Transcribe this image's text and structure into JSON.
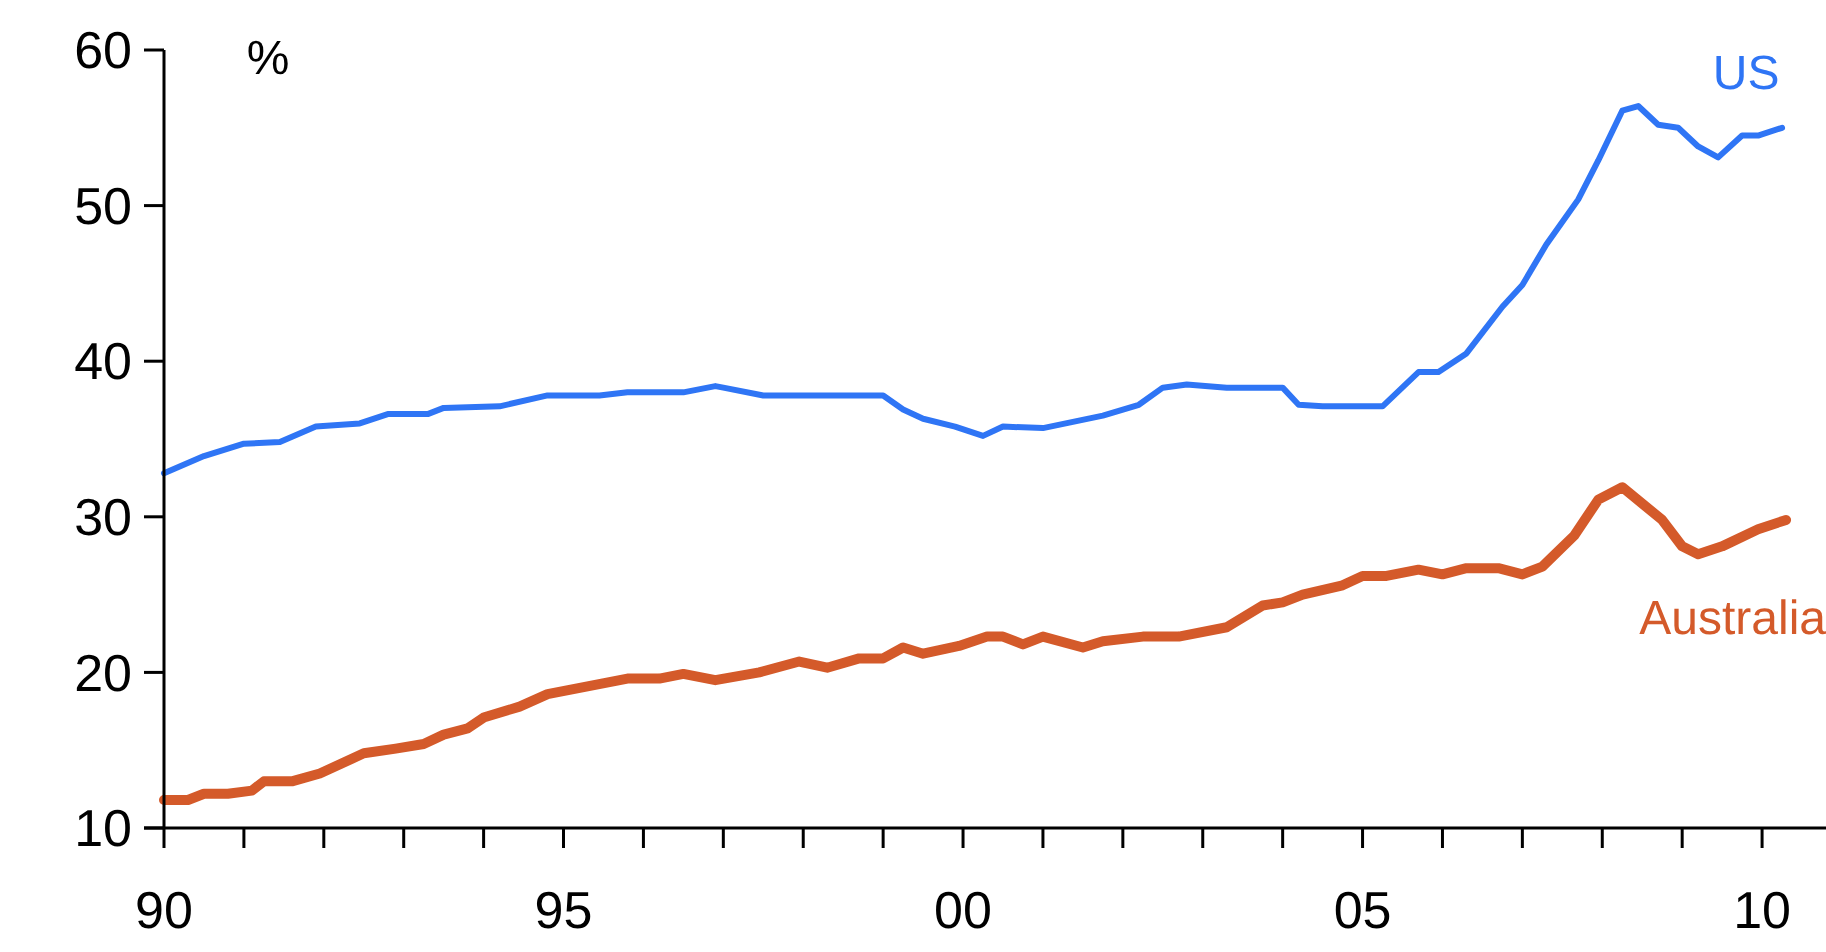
{
  "chart_data": {
    "type": "line",
    "ylabel": "%",
    "xlim": [
      1990,
      2010.8
    ],
    "ylim": [
      10,
      60
    ],
    "yticks": [
      10,
      20,
      30,
      40,
      50,
      60
    ],
    "xticks": [
      {
        "value": 1990,
        "label": "90"
      },
      {
        "value": 1991,
        "label": null
      },
      {
        "value": 1992,
        "label": null
      },
      {
        "value": 1993,
        "label": null
      },
      {
        "value": 1994,
        "label": null
      },
      {
        "value": 1995,
        "label": "95"
      },
      {
        "value": 1996,
        "label": null
      },
      {
        "value": 1997,
        "label": null
      },
      {
        "value": 1998,
        "label": null
      },
      {
        "value": 1999,
        "label": null
      },
      {
        "value": 2000,
        "label": "00"
      },
      {
        "value": 2001,
        "label": null
      },
      {
        "value": 2002,
        "label": null
      },
      {
        "value": 2003,
        "label": null
      },
      {
        "value": 2004,
        "label": null
      },
      {
        "value": 2005,
        "label": "05"
      },
      {
        "value": 2006,
        "label": null
      },
      {
        "value": 2007,
        "label": null
      },
      {
        "value": 2008,
        "label": null
      },
      {
        "value": 2009,
        "label": null
      },
      {
        "value": 2010,
        "label": "10"
      }
    ],
    "grid": false,
    "marker": "none",
    "line_style": "solid",
    "series": [
      {
        "name": "US",
        "color": "#2f75f5",
        "x": [
          1990,
          1990.5,
          1991,
          1991.45,
          1991.9,
          1992.45,
          1992.8,
          1993.3,
          1993.5,
          1994.2,
          1994.8,
          1995.45,
          1995.8,
          1996.5,
          1996.9,
          1997,
          1997.5,
          1999,
          1999.25,
          1999.5,
          1999.9,
          2000.25,
          2000.5,
          2001,
          2001.75,
          2002.2,
          2002.5,
          2002.8,
          2003.3,
          2004,
          2004.2,
          2004.5,
          2005.25,
          2005.7,
          2005.95,
          2006.3,
          2006.75,
          2007,
          2007.3,
          2007.7,
          2007.95,
          2008.25,
          2008.45,
          2008.7,
          2008.95,
          2009.2,
          2009.45,
          2009.75,
          2009.95,
          2010.25
        ],
        "values": [
          32.8,
          33.9,
          34.7,
          34.8,
          35.8,
          36,
          36.6,
          36.6,
          37,
          37.1,
          37.8,
          37.8,
          38,
          38,
          38.4,
          38.3,
          37.8,
          37.8,
          36.9,
          36.3,
          35.8,
          35.2,
          35.8,
          35.7,
          36.5,
          37.2,
          38.3,
          38.5,
          38.3,
          38.3,
          37.2,
          37.1,
          37.1,
          39.3,
          39.3,
          40.5,
          43.5,
          44.9,
          47.5,
          50.4,
          52.9,
          56.1,
          56.4,
          55.2,
          55,
          53.8,
          53.1,
          54.5,
          54.5,
          55
        ]
      },
      {
        "name": "Australia",
        "color": "#d45a2a",
        "x": [
          1990,
          1990.3,
          1990.5,
          1990.8,
          1991.1,
          1991.25,
          1991.6,
          1991.95,
          1992.5,
          1992.9,
          1993.25,
          1993.5,
          1993.8,
          1994,
          1994.45,
          1994.8,
          1995.3,
          1995.8,
          1996.2,
          1996.5,
          1996.9,
          1997.45,
          1997.95,
          1998.3,
          1998.7,
          1999,
          1999.25,
          1999.5,
          1999.95,
          2000.3,
          2000.5,
          2000.75,
          2001,
          2001.5,
          2001.75,
          2002.25,
          2002.7,
          2003.3,
          2003.75,
          2004,
          2004.25,
          2004.75,
          2005,
          2005.3,
          2005.7,
          2006,
          2006.3,
          2006.7,
          2007,
          2007.25,
          2007.65,
          2007.95,
          2008.25,
          2008.75,
          2009,
          2009.2,
          2009.5,
          2009.95,
          2010.3
        ],
        "values": [
          11.8,
          11.8,
          12.2,
          12.2,
          12.4,
          13,
          13,
          13.5,
          14.8,
          15.1,
          15.4,
          16,
          16.4,
          17.1,
          17.8,
          18.6,
          19.1,
          19.6,
          19.6,
          19.9,
          19.5,
          20,
          20.7,
          20.3,
          20.9,
          20.9,
          21.6,
          21.2,
          21.7,
          22.3,
          22.3,
          21.8,
          22.3,
          21.6,
          22,
          22.3,
          22.3,
          22.9,
          24.3,
          24.5,
          25,
          25.6,
          26.2,
          26.2,
          26.6,
          26.3,
          26.7,
          26.7,
          26.3,
          26.8,
          28.8,
          31.1,
          31.9,
          29.8,
          28.1,
          27.6,
          28.1,
          29.2,
          29.8
        ]
      }
    ]
  }
}
